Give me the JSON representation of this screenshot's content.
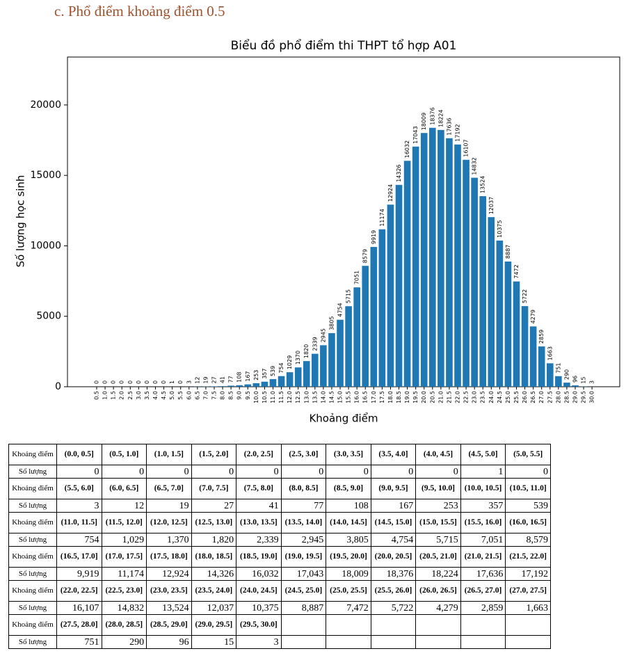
{
  "heading": "c.   Phổ điểm khoảng điểm 0.5",
  "chart_data": {
    "type": "bar",
    "title": "Biểu đồ phổ điểm thi THPT tổ hợp A01",
    "x_label": "Khoảng điểm",
    "y_label": "Số lượng học sinh",
    "categories": [
      "0.5",
      "1.0",
      "1.5",
      "2.0",
      "2.5",
      "3.0",
      "3.5",
      "4.0",
      "4.5",
      "5.0",
      "5.5",
      "6.0",
      "6.5",
      "7.0",
      "7.5",
      "8.0",
      "8.5",
      "9.0",
      "9.5",
      "10.0",
      "10.5",
      "11.0",
      "11.5",
      "12.0",
      "12.5",
      "13.0",
      "13.5",
      "14.0",
      "14.5",
      "15.0",
      "15.5",
      "16.0",
      "16.5",
      "17.0",
      "17.5",
      "18.0",
      "18.5",
      "19.0",
      "19.5",
      "20.0",
      "20.5",
      "21.0",
      "21.5",
      "22.0",
      "22.5",
      "23.0",
      "23.5",
      "24.0",
      "24.5",
      "25.0",
      "25.5",
      "26.0",
      "26.5",
      "27.0",
      "27.5",
      "28.0",
      "28.5",
      "29.0",
      "29.5",
      "30.0"
    ],
    "values": [
      0,
      0,
      0,
      0,
      0,
      0,
      0,
      0,
      0,
      1,
      0,
      3,
      12,
      19,
      27,
      41,
      77,
      108,
      167,
      253,
      357,
      539,
      754,
      1029,
      1370,
      1820,
      2339,
      2945,
      3805,
      4754,
      5715,
      7051,
      8579,
      9919,
      11174,
      12924,
      14326,
      16032,
      17043,
      18009,
      18376,
      18224,
      17636,
      17192,
      16107,
      14832,
      13524,
      12037,
      10375,
      8887,
      7472,
      5722,
      4279,
      2859,
      1663,
      751,
      290,
      96,
      15,
      3
    ],
    "color": "#1f77b4",
    "ylim": [
      0,
      23400
    ],
    "yticks": [
      0,
      5000,
      10000,
      15000,
      20000
    ],
    "grid": false
  },
  "table": {
    "rows": [
      {
        "label": "Khoảng điểm",
        "cells": [
          "(0.0, 0.5]",
          "(0.5, 1.0]",
          "(1.0, 1.5]",
          "(1.5, 2.0]",
          "(2.0, 2.5]",
          "(2.5, 3.0]",
          "(3.0, 3.5]",
          "(3.5, 4.0]",
          "(4.0, 4.5]",
          "(4.5, 5.0]",
          "(5.0, 5.5]"
        ]
      },
      {
        "label": "Số lượng",
        "cells": [
          "0",
          "0",
          "0",
          "0",
          "0",
          "0",
          "0",
          "0",
          "0",
          "1",
          "0"
        ]
      },
      {
        "label": "Khoảng điểm",
        "cells": [
          "(5.5, 6.0]",
          "(6.0, 6.5]",
          "(6.5, 7.0]",
          "(7.0, 7.5]",
          "(7.5, 8.0]",
          "(8.0, 8.5]",
          "(8.5, 9.0]",
          "(9.0, 9.5]",
          "(9.5, 10.0]",
          "(10.0, 10.5]",
          "(10.5, 11.0]"
        ]
      },
      {
        "label": "Số lượng",
        "cells": [
          "3",
          "12",
          "19",
          "27",
          "41",
          "77",
          "108",
          "167",
          "253",
          "357",
          "539"
        ]
      },
      {
        "label": "Khoảng điểm",
        "cells": [
          "(11.0, 11.5]",
          "(11.5, 12.0]",
          "(12.0, 12.5]",
          "(12.5, 13.0]",
          "(13.0, 13.5]",
          "(13.5, 14.0]",
          "(14.0, 14.5]",
          "(14.5, 15.0]",
          "(15.0, 15.5]",
          "(15.5, 16.0]",
          "(16.0, 16.5]"
        ]
      },
      {
        "label": "Số lượng",
        "cells": [
          "754",
          "1,029",
          "1,370",
          "1,820",
          "2,339",
          "2,945",
          "3,805",
          "4,754",
          "5,715",
          "7,051",
          "8,579"
        ]
      },
      {
        "label": "Khoảng điểm",
        "cells": [
          "(16.5, 17.0]",
          "(17.0, 17.5]",
          "(17.5, 18.0]",
          "(18.0, 18.5]",
          "(18.5, 19.0]",
          "(19.0, 19.5]",
          "(19.5, 20.0]",
          "(20.0, 20.5]",
          "(20.5, 21.0]",
          "(21.0, 21.5]",
          "(21.5, 22.0]"
        ]
      },
      {
        "label": "Số lượng",
        "cells": [
          "9,919",
          "11,174",
          "12,924",
          "14,326",
          "16,032",
          "17,043",
          "18,009",
          "18,376",
          "18,224",
          "17,636",
          "17,192"
        ]
      },
      {
        "label": "Khoảng điểm",
        "cells": [
          "(22.0, 22.5]",
          "(22.5, 23.0]",
          "(23.0, 23.5]",
          "(23.5, 24.0]",
          "(24.0, 24.5]",
          "(24.5, 25.0]",
          "(25.0, 25.5]",
          "(25.5, 26.0]",
          "(26.0, 26.5]",
          "(26.5, 27.0]",
          "(27.0, 27.5]"
        ]
      },
      {
        "label": "Số lượng",
        "cells": [
          "16,107",
          "14,832",
          "13,524",
          "12,037",
          "10,375",
          "8,887",
          "7,472",
          "5,722",
          "4,279",
          "2,859",
          "1,663"
        ]
      },
      {
        "label": "Khoảng điểm",
        "cells": [
          "(27.5, 28.0]",
          "(28.0, 28.5]",
          "(28.5, 29.0]",
          "(29.0, 29.5]",
          "(29.5, 30.0]"
        ]
      },
      {
        "label": "Số lượng",
        "cells": [
          "751",
          "290",
          "96",
          "15",
          "3"
        ]
      }
    ]
  }
}
